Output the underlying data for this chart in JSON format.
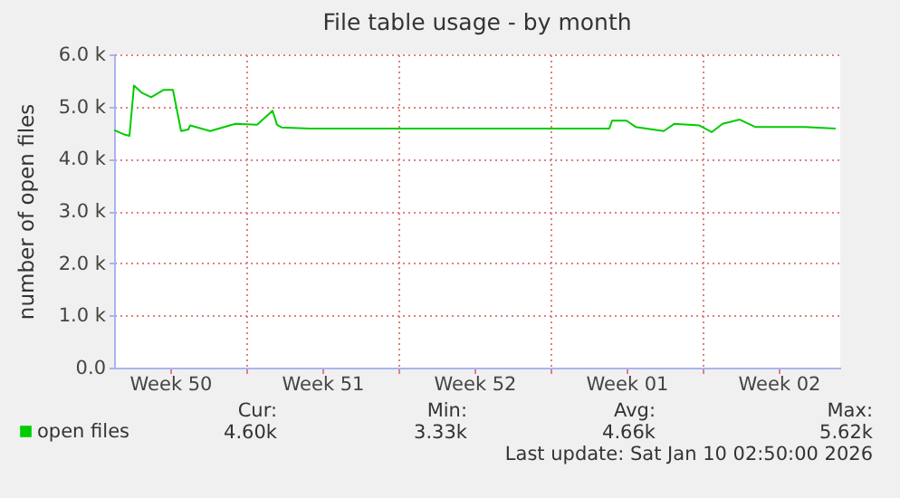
{
  "chart_data": {
    "type": "line",
    "title": "File table usage - by month",
    "ylabel": "number of open files",
    "series": [
      {
        "name": "open files",
        "color": "#00cc00",
        "x": [
          "2025-12-08T22:00",
          "2025-12-09T10:00",
          "2025-12-09T15:00",
          "2025-12-09T20:00",
          "2025-12-10T05:00",
          "2025-12-10T15:00",
          "2025-12-11T05:00",
          "2025-12-11T08:00",
          "2025-12-11T10:00",
          "2025-12-11T15:00",
          "2025-12-12T00:00",
          "2025-12-12T08:00",
          "2025-12-12T10:00",
          "2025-12-13T08:00",
          "2025-12-14T12:00",
          "2025-12-15T12:00",
          "2025-12-16T05:00",
          "2025-12-16T10:00",
          "2025-12-16T15:00",
          "2025-12-17T22:00",
          "2025-12-20T22:00",
          "2025-12-24T22:00",
          "2025-12-28T22:00",
          "2025-12-31T17:00",
          "2025-12-31T20:00",
          "2026-01-01T12:00",
          "2026-01-01T22:00",
          "2026-01-03T05:00",
          "2026-01-03T17:00",
          "2026-01-04T20:00",
          "2026-01-05T10:00",
          "2026-01-05T22:00",
          "2026-01-06T17:00",
          "2026-01-07T10:00",
          "2026-01-08T00:00",
          "2026-01-09T17:00",
          "2026-01-11T03:00"
        ],
        "values": [
          4550,
          4460,
          4440,
          5400,
          5260,
          5180,
          5320,
          5320,
          5320,
          5320,
          4530,
          4560,
          4640,
          4530,
          4670,
          4650,
          4920,
          4650,
          4600,
          4580,
          4580,
          4580,
          4580,
          4580,
          4730,
          4730,
          4610,
          4530,
          4670,
          4640,
          4510,
          4670,
          4750,
          4610,
          4610,
          4610,
          4580
        ]
      }
    ],
    "xlim": [
      "2025-12-08T22:00",
      "2026-01-11T08:00"
    ],
    "xticks": [
      {
        "value": "2025-12-11T12:00",
        "label": "Week 50"
      },
      {
        "value": "2025-12-15T00:00",
        "label": null
      },
      {
        "value": "2025-12-18T12:00",
        "label": "Week 51"
      },
      {
        "value": "2025-12-22T00:00",
        "label": null
      },
      {
        "value": "2025-12-25T12:00",
        "label": "Week 52"
      },
      {
        "value": "2025-12-29T00:00",
        "label": null
      },
      {
        "value": "2026-01-01T12:00",
        "label": "Week 01"
      },
      {
        "value": "2026-01-05T00:00",
        "label": null
      },
      {
        "value": "2026-01-08T12:00",
        "label": "Week 02"
      }
    ],
    "ylim": [
      0,
      6000
    ],
    "yticks": [
      {
        "value": 0,
        "label": "0.0"
      },
      {
        "value": 1000,
        "label": "1.0 k"
      },
      {
        "value": 2000,
        "label": "2.0 k"
      },
      {
        "value": 3000,
        "label": "3.0 k"
      },
      {
        "value": 4000,
        "label": "4.0 k"
      },
      {
        "value": 5000,
        "label": "5.0 k"
      },
      {
        "value": 6000,
        "label": "6.0 k"
      }
    ],
    "grid": true,
    "legend": "bottom left",
    "annotations": [
      "Cur:",
      "Min:",
      "Avg:",
      "Max:",
      "4.60k",
      "3.33k",
      "4.66k",
      "5.62k",
      "Last update: Sat Jan 10 02:50:00 2026"
    ]
  }
}
